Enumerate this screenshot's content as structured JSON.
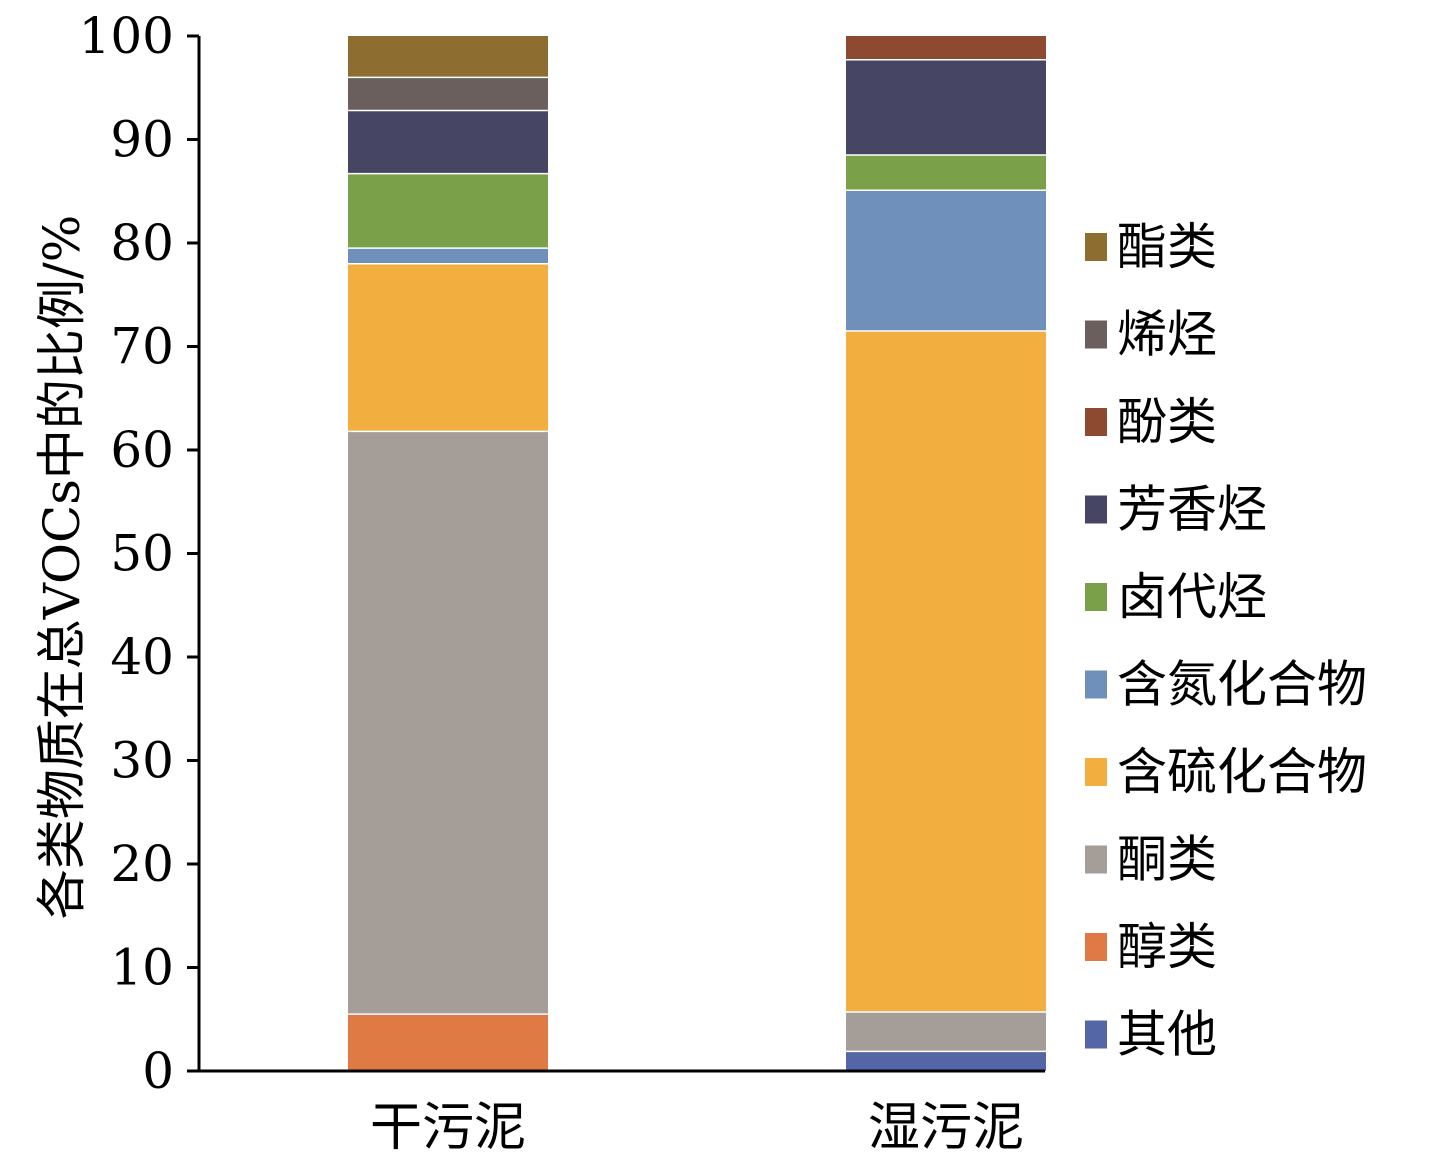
{
  "chart_data": {
    "type": "bar",
    "stacked": true,
    "ylabel": "各类物质在总VOCs中的比例/%",
    "xlabel": "",
    "ylim": [
      0,
      100
    ],
    "yticks": [
      0,
      10,
      20,
      30,
      40,
      50,
      60,
      70,
      80,
      90,
      100
    ],
    "categories": [
      "干污泥",
      "湿污泥"
    ],
    "grid": false,
    "legend_position": "right",
    "series": [
      {
        "name": "其他",
        "color": "#5566a6",
        "values": [
          0.0,
          1.9
        ]
      },
      {
        "name": "醇类",
        "color": "#e07a45",
        "values": [
          5.5,
          0.0
        ]
      },
      {
        "name": "酮类",
        "color": "#a59d98",
        "values": [
          56.3,
          3.8
        ]
      },
      {
        "name": "含硫化合物",
        "color": "#f2ae3e",
        "values": [
          16.2,
          65.8
        ]
      },
      {
        "name": "含氮化合物",
        "color": "#6e90bb",
        "values": [
          1.5,
          13.6
        ]
      },
      {
        "name": "卤代烃",
        "color": "#7aa04a",
        "values": [
          7.2,
          3.4
        ]
      },
      {
        "name": "芳香烃",
        "color": "#464564",
        "values": [
          6.1,
          9.2
        ]
      },
      {
        "name": "酚类",
        "color": "#8e4a30",
        "values": [
          0.0,
          2.3
        ]
      },
      {
        "name": "烯烃",
        "color": "#6a5f5c",
        "values": [
          3.2,
          0.0
        ]
      },
      {
        "name": "酯类",
        "color": "#8d6e30",
        "values": [
          4.0,
          0.0
        ]
      }
    ]
  }
}
